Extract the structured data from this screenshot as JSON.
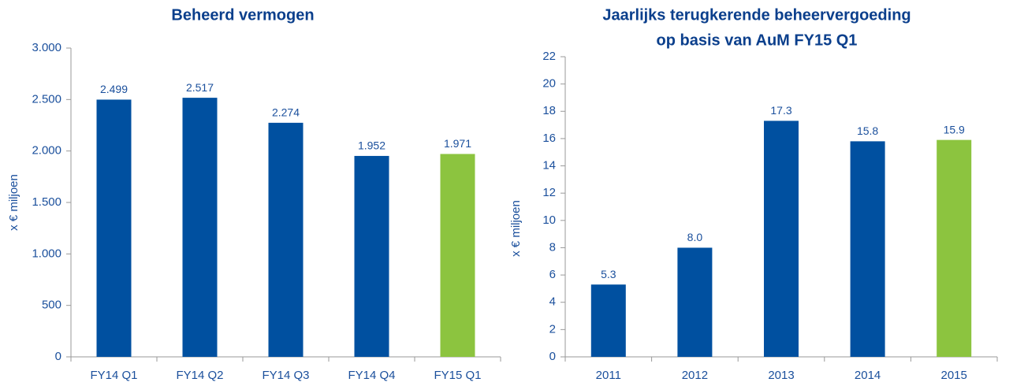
{
  "chart_data": [
    {
      "type": "bar",
      "title": [
        "Beheerd vermogen"
      ],
      "y_label": "x € miljoen",
      "categories": [
        "FY14 Q1",
        "FY14 Q2",
        "FY14 Q3",
        "FY14 Q4",
        "FY15 Q1"
      ],
      "values": [
        2499,
        2517,
        2274,
        1952,
        1971
      ],
      "value_labels": [
        "2.499",
        "2.517",
        "2.274",
        "1.952",
        "1.971"
      ],
      "colors": [
        "#0050a0",
        "#0050a0",
        "#0050a0",
        "#0050a0",
        "#8cc43f"
      ],
      "ylim": [
        0,
        3000
      ],
      "yticks": [
        0,
        500,
        {
          "value": 1000,
          "label": "1.000"
        },
        {
          "value": 1500,
          "label": "1.500"
        },
        {
          "value": 2000,
          "label": "2.000"
        },
        {
          "value": 2500,
          "label": "2.500"
        },
        {
          "value": 3000,
          "label": "3.000"
        }
      ]
    },
    {
      "type": "bar",
      "title": [
        "Jaarlijks terugkerende beheervergoeding",
        "op basis van AuM FY15 Q1"
      ],
      "y_label": "x € miljoen",
      "categories": [
        "2011",
        "2012",
        "2013",
        "2014",
        "2015"
      ],
      "values": [
        5.3,
        8.0,
        17.3,
        15.8,
        15.9
      ],
      "value_labels": [
        "5.3",
        "8.0",
        "17.3",
        "15.8",
        "15.9"
      ],
      "colors": [
        "#0050a0",
        "#0050a0",
        "#0050a0",
        "#0050a0",
        "#8cc43f"
      ],
      "ylim": [
        0,
        22
      ],
      "yticks": [
        0,
        2,
        4,
        6,
        8,
        10,
        12,
        14,
        16,
        18,
        20,
        22
      ]
    }
  ]
}
